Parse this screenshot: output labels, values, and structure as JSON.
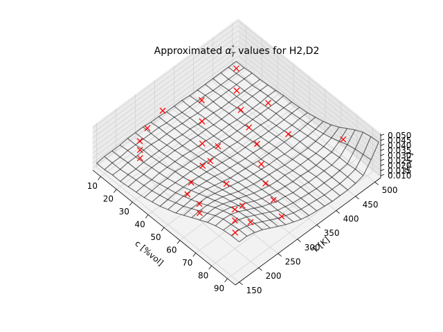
{
  "chart_data": {
    "type": "surface-3d",
    "title": "Approximated α°T values for H2,D2",
    "title_parts": {
      "before": "Approximated ",
      "symbol": "α",
      "sup": "°",
      "sub": "T",
      "after": " values for H2,D2"
    },
    "xlabel": "c [%vol]",
    "ylabel": "T [K]",
    "zlabel": "α°T [-]",
    "zlabel_parts": {
      "symbol": "α",
      "sup": "°",
      "sub": "T",
      "after": " [-]"
    },
    "xlim": [
      5,
      95
    ],
    "ylim": [
      140,
      515
    ],
    "zlim": [
      0.008,
      0.052
    ],
    "x_ticks": [
      "10",
      "20",
      "30",
      "40",
      "50",
      "60",
      "70",
      "80",
      "90"
    ],
    "y_ticks": [
      "150",
      "200",
      "250",
      "300",
      "350",
      "400",
      "450",
      "500"
    ],
    "z_ticks": [
      "0.010",
      "0.015",
      "0.020",
      "0.025",
      "0.030",
      "0.035",
      "0.040",
      "0.045",
      "0.050"
    ],
    "grid": true,
    "surface": {
      "name": "approximation",
      "x": [
        5,
        10,
        15,
        20,
        25,
        30,
        35,
        40,
        45,
        50,
        55,
        60,
        65,
        70,
        75,
        80,
        85,
        90,
        95
      ],
      "y": [
        150,
        170,
        190,
        210,
        230,
        250,
        270,
        290,
        310,
        330,
        350,
        370,
        390,
        410,
        430,
        450,
        470,
        490,
        510
      ],
      "z": [
        [
          0.012,
          0.012,
          0.013,
          0.013,
          0.014,
          0.015,
          0.016,
          0.018,
          0.02,
          0.023,
          0.026,
          0.03,
          0.034,
          0.038,
          0.042,
          0.045,
          0.047,
          0.048,
          0.048
        ],
        [
          0.013,
          0.013,
          0.013,
          0.014,
          0.015,
          0.016,
          0.017,
          0.019,
          0.021,
          0.024,
          0.027,
          0.031,
          0.035,
          0.039,
          0.043,
          0.046,
          0.047,
          0.048,
          0.048
        ],
        [
          0.013,
          0.013,
          0.014,
          0.014,
          0.015,
          0.016,
          0.018,
          0.02,
          0.022,
          0.025,
          0.028,
          0.031,
          0.035,
          0.039,
          0.042,
          0.045,
          0.046,
          0.046,
          0.046
        ],
        [
          0.013,
          0.014,
          0.014,
          0.015,
          0.016,
          0.017,
          0.018,
          0.02,
          0.022,
          0.025,
          0.028,
          0.031,
          0.034,
          0.037,
          0.04,
          0.042,
          0.043,
          0.043,
          0.043
        ],
        [
          0.014,
          0.014,
          0.015,
          0.015,
          0.016,
          0.017,
          0.019,
          0.02,
          0.022,
          0.024,
          0.027,
          0.029,
          0.032,
          0.034,
          0.036,
          0.038,
          0.039,
          0.039,
          0.039
        ],
        [
          0.014,
          0.014,
          0.015,
          0.015,
          0.016,
          0.017,
          0.018,
          0.02,
          0.021,
          0.023,
          0.025,
          0.027,
          0.029,
          0.031,
          0.033,
          0.034,
          0.035,
          0.035,
          0.035
        ],
        [
          0.014,
          0.014,
          0.014,
          0.015,
          0.016,
          0.017,
          0.018,
          0.019,
          0.02,
          0.022,
          0.023,
          0.025,
          0.026,
          0.028,
          0.029,
          0.03,
          0.031,
          0.031,
          0.031
        ],
        [
          0.013,
          0.014,
          0.014,
          0.015,
          0.015,
          0.016,
          0.017,
          0.018,
          0.019,
          0.02,
          0.021,
          0.023,
          0.024,
          0.025,
          0.026,
          0.027,
          0.027,
          0.028,
          0.028
        ],
        [
          0.013,
          0.013,
          0.014,
          0.014,
          0.015,
          0.015,
          0.016,
          0.017,
          0.018,
          0.019,
          0.02,
          0.021,
          0.022,
          0.023,
          0.024,
          0.024,
          0.025,
          0.025,
          0.025
        ],
        [
          0.012,
          0.013,
          0.013,
          0.014,
          0.014,
          0.015,
          0.015,
          0.016,
          0.017,
          0.018,
          0.019,
          0.02,
          0.021,
          0.021,
          0.022,
          0.023,
          0.023,
          0.023,
          0.023
        ],
        [
          0.012,
          0.012,
          0.013,
          0.013,
          0.014,
          0.014,
          0.015,
          0.016,
          0.016,
          0.017,
          0.018,
          0.019,
          0.02,
          0.02,
          0.021,
          0.021,
          0.022,
          0.022,
          0.022
        ],
        [
          0.012,
          0.012,
          0.012,
          0.013,
          0.013,
          0.014,
          0.014,
          0.015,
          0.016,
          0.017,
          0.017,
          0.018,
          0.019,
          0.02,
          0.02,
          0.021,
          0.021,
          0.021,
          0.021
        ],
        [
          0.011,
          0.012,
          0.012,
          0.013,
          0.013,
          0.014,
          0.014,
          0.015,
          0.016,
          0.016,
          0.017,
          0.018,
          0.018,
          0.019,
          0.02,
          0.02,
          0.02,
          0.02,
          0.02
        ],
        [
          0.011,
          0.012,
          0.012,
          0.012,
          0.013,
          0.013,
          0.014,
          0.015,
          0.015,
          0.016,
          0.017,
          0.017,
          0.018,
          0.019,
          0.019,
          0.02,
          0.02,
          0.02,
          0.02
        ],
        [
          0.011,
          0.011,
          0.012,
          0.012,
          0.013,
          0.013,
          0.014,
          0.015,
          0.015,
          0.016,
          0.017,
          0.017,
          0.018,
          0.019,
          0.019,
          0.02,
          0.02,
          0.02,
          0.02
        ],
        [
          0.011,
          0.011,
          0.012,
          0.012,
          0.013,
          0.013,
          0.014,
          0.014,
          0.015,
          0.016,
          0.017,
          0.018,
          0.018,
          0.019,
          0.02,
          0.02,
          0.021,
          0.021,
          0.021
        ],
        [
          0.011,
          0.011,
          0.012,
          0.012,
          0.013,
          0.013,
          0.014,
          0.015,
          0.015,
          0.016,
          0.017,
          0.018,
          0.019,
          0.02,
          0.021,
          0.022,
          0.022,
          0.023,
          0.023
        ],
        [
          0.011,
          0.011,
          0.012,
          0.012,
          0.013,
          0.014,
          0.014,
          0.015,
          0.016,
          0.017,
          0.018,
          0.019,
          0.021,
          0.023,
          0.026,
          0.029,
          0.031,
          0.032,
          0.033
        ],
        [
          0.011,
          0.011,
          0.012,
          0.012,
          0.013,
          0.014,
          0.015,
          0.015,
          0.016,
          0.017,
          0.019,
          0.021,
          0.024,
          0.028,
          0.033,
          0.038,
          0.042,
          0.044,
          0.045
        ]
      ]
    },
    "points": {
      "name": "measured",
      "marker": "x",
      "color": "#ff0000",
      "x": [
        10,
        15,
        20,
        25,
        30,
        40,
        45,
        50,
        55,
        65,
        70,
        80,
        85,
        90,
        15,
        25,
        35,
        45,
        60,
        75,
        85,
        20,
        30,
        40,
        50,
        60,
        70,
        80,
        90,
        10,
        35,
        55,
        75
      ],
      "y": [
        300,
        240,
        200,
        180,
        160,
        320,
        260,
        210,
        180,
        170,
        150,
        200,
        180,
        160,
        380,
        340,
        300,
        280,
        260,
        240,
        220,
        450,
        420,
        400,
        380,
        350,
        320,
        300,
        280,
        490,
        470,
        440,
        500
      ],
      "z": [
        0.028,
        0.034,
        0.039,
        0.042,
        0.046,
        0.025,
        0.029,
        0.033,
        0.036,
        0.042,
        0.045,
        0.047,
        0.048,
        0.048,
        0.022,
        0.025,
        0.027,
        0.028,
        0.03,
        0.033,
        0.035,
        0.018,
        0.02,
        0.021,
        0.023,
        0.024,
        0.026,
        0.028,
        0.03,
        0.016,
        0.019,
        0.022,
        0.025
      ]
    }
  }
}
